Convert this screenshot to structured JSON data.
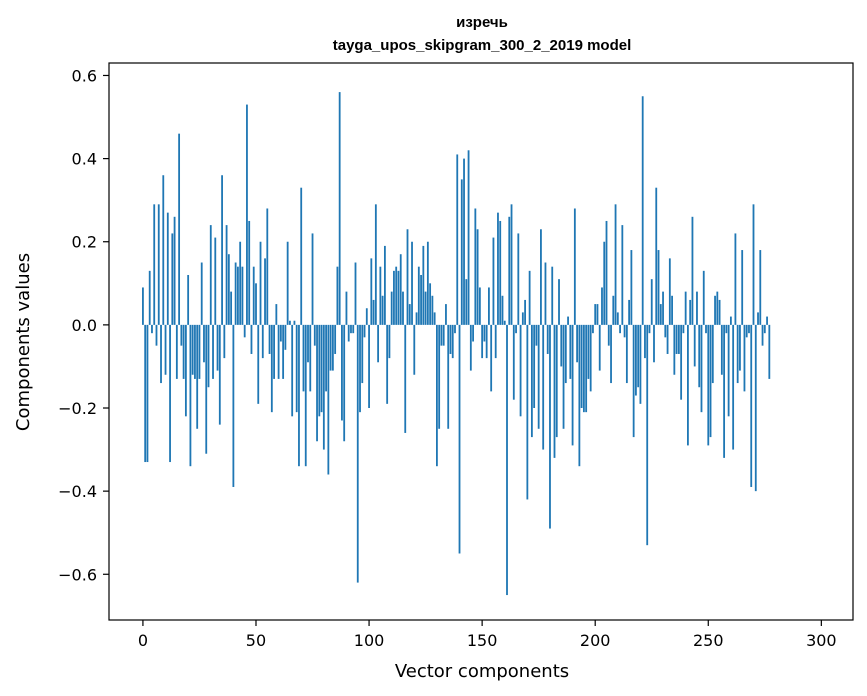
{
  "chart_data": {
    "type": "bar",
    "title": "изречь",
    "subtitle": "tayga_upos_skipgram_300_2_2019 model",
    "xlabel": "Vector components",
    "ylabel": "Components values",
    "xlim": [
      -15,
      314
    ],
    "ylim": [
      -0.71,
      0.63
    ],
    "xticks": [
      0,
      50,
      100,
      150,
      200,
      250,
      300
    ],
    "xtick_labels": [
      "0",
      "50",
      "100",
      "150",
      "200",
      "250",
      "300"
    ],
    "yticks": [
      -0.6,
      -0.4,
      -0.2,
      0.0,
      0.2,
      0.4,
      0.6
    ],
    "ytick_labels": [
      "−0.6",
      "−0.4",
      "−0.2",
      "0.0",
      "0.2",
      "0.4",
      "0.6"
    ],
    "bar_color": "#1f77b4",
    "grid": false,
    "values": [
      0.09,
      -0.33,
      -0.33,
      0.13,
      -0.02,
      0.29,
      -0.05,
      0.29,
      -0.14,
      0.36,
      -0.12,
      0.27,
      -0.33,
      0.22,
      0.26,
      -0.13,
      0.46,
      -0.05,
      -0.13,
      -0.22,
      0.12,
      -0.34,
      -0.12,
      -0.13,
      -0.25,
      -0.13,
      0.15,
      -0.09,
      -0.31,
      -0.15,
      0.24,
      -0.13,
      0.21,
      -0.11,
      -0.24,
      0.36,
      -0.08,
      0.24,
      0.17,
      0.08,
      -0.39,
      0.15,
      0.14,
      0.2,
      0.14,
      -0.03,
      0.53,
      0.25,
      -0.07,
      0.14,
      0.1,
      -0.19,
      0.2,
      -0.08,
      0.16,
      0.28,
      -0.07,
      -0.21,
      -0.13,
      0.05,
      -0.13,
      -0.04,
      -0.13,
      -0.06,
      0.2,
      0.01,
      -0.22,
      0.01,
      -0.21,
      -0.34,
      0.33,
      -0.16,
      -0.34,
      -0.09,
      -0.16,
      0.22,
      -0.05,
      -0.28,
      -0.22,
      -0.21,
      -0.3,
      -0.16,
      -0.36,
      -0.11,
      -0.11,
      -0.07,
      0.14,
      0.56,
      -0.23,
      -0.28,
      0.08,
      -0.04,
      -0.02,
      -0.02,
      0.15,
      -0.62,
      -0.21,
      -0.14,
      -0.03,
      0.04,
      -0.2,
      0.16,
      0.06,
      0.29,
      -0.09,
      0.14,
      0.07,
      0.19,
      -0.19,
      -0.08,
      0.08,
      0.13,
      0.14,
      0.13,
      0.17,
      0.08,
      -0.26,
      0.23,
      0.05,
      0.2,
      -0.12,
      0.03,
      0.14,
      0.12,
      0.19,
      0.08,
      0.2,
      0.1,
      0.07,
      0.03,
      -0.34,
      -0.25,
      -0.05,
      -0.05,
      0.05,
      -0.25,
      -0.07,
      -0.08,
      -0.02,
      0.41,
      -0.55,
      0.35,
      0.4,
      0.11,
      0.42,
      -0.11,
      -0.04,
      0.28,
      0.23,
      0.09,
      -0.08,
      -0.04,
      -0.08,
      0.09,
      -0.16,
      0.21,
      -0.08,
      0.27,
      0.25,
      0.07,
      0.01,
      -0.65,
      0.26,
      0.29,
      -0.18,
      -0.02,
      0.22,
      -0.22,
      0.03,
      0.06,
      -0.42,
      0.13,
      -0.27,
      -0.2,
      -0.05,
      -0.25,
      0.23,
      -0.3,
      0.15,
      -0.07,
      -0.49,
      0.14,
      -0.32,
      -0.27,
      0.11,
      -0.1,
      -0.25,
      -0.14,
      0.02,
      -0.13,
      -0.29,
      0.28,
      -0.09,
      -0.34,
      -0.2,
      -0.21,
      -0.21,
      -0.13,
      -0.16,
      -0.02,
      0.05,
      0.05,
      -0.11,
      0.09,
      0.2,
      0.25,
      -0.05,
      -0.14,
      0.07,
      0.29,
      0.03,
      -0.02,
      0.24,
      -0.03,
      -0.14,
      0.06,
      0.18,
      -0.27,
      -0.17,
      -0.15,
      -0.19,
      0.55,
      -0.08,
      -0.53,
      -0.02,
      0.11,
      -0.09,
      0.33,
      0.18,
      0.05,
      0.08,
      -0.03,
      -0.07,
      0.16,
      0.07,
      -0.12,
      -0.07,
      -0.07,
      -0.18,
      -0.02,
      0.08,
      -0.29,
      0.06,
      0.26,
      -0.1,
      0.08,
      -0.15,
      -0.21,
      0.13,
      -0.02,
      -0.29,
      -0.27,
      -0.14,
      0.07,
      0.08,
      0.06,
      -0.12,
      -0.32,
      -0.02,
      -0.22,
      0.02,
      -0.3,
      0.22,
      -0.14,
      -0.11,
      0.18,
      -0.16,
      -0.03,
      -0.02,
      -0.39,
      0.29,
      -0.4,
      0.03,
      0.18,
      -0.05,
      -0.02,
      0.02,
      -0.13
    ]
  }
}
